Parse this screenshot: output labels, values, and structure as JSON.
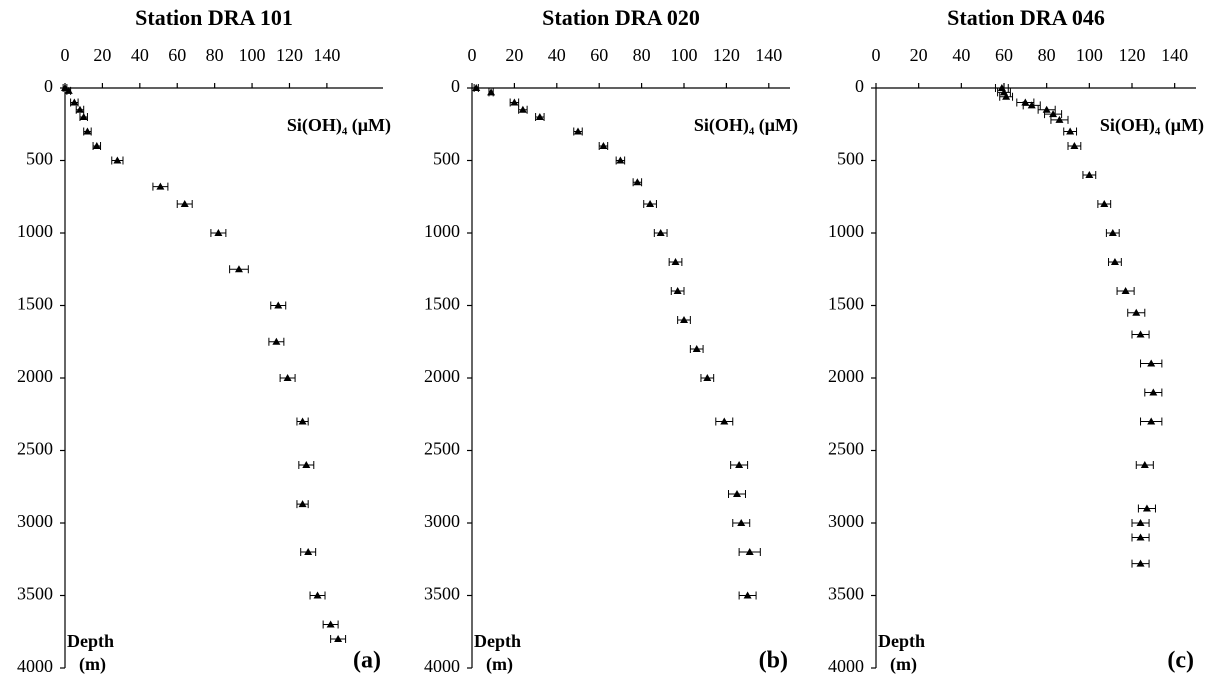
{
  "chart_data": [
    {
      "type": "scatter",
      "title": "Station DRA 101",
      "xlabel": "Si(OH)₄ (μM)",
      "ylabel": "Depth",
      "ylabel_unit": "(m)",
      "panel_label": "(a)",
      "x_axis_position": "top",
      "y_inverted": true,
      "color": "#000000",
      "xlim": [
        0,
        170
      ],
      "xticks": [
        0,
        20,
        40,
        60,
        80,
        100,
        120,
        140
      ],
      "ylim": [
        0,
        4000
      ],
      "yticks": [
        0,
        500,
        1000,
        1500,
        2000,
        2500,
        3000,
        3500,
        4000
      ],
      "x": [
        0,
        2,
        5,
        8,
        10,
        12,
        17,
        28,
        51,
        64,
        82,
        93,
        114,
        113,
        119,
        127,
        129,
        127,
        130,
        135,
        142,
        146
      ],
      "y": [
        0,
        20,
        100,
        150,
        200,
        300,
        400,
        500,
        680,
        800,
        1000,
        1250,
        1500,
        1750,
        2000,
        2300,
        2600,
        2870,
        3200,
        3500,
        3700,
        3800
      ],
      "xerr": [
        1,
        1,
        2,
        2,
        2,
        2,
        2,
        3,
        4,
        4,
        4,
        5,
        4,
        4,
        4,
        3,
        4,
        3,
        4,
        4,
        4,
        4
      ]
    },
    {
      "type": "scatter",
      "title": "Station DRA 020",
      "xlabel": "Si(OH)₄ (μM)",
      "ylabel": "Depth",
      "ylabel_unit": "(m)",
      "panel_label": "(b)",
      "x_axis_position": "top",
      "y_inverted": true,
      "color": "#000000",
      "xlim": [
        0,
        150
      ],
      "xticks": [
        0,
        20,
        40,
        60,
        80,
        100,
        120,
        140
      ],
      "ylim": [
        0,
        4000
      ],
      "yticks": [
        0,
        500,
        1000,
        1500,
        2000,
        2500,
        3000,
        3500,
        4000
      ],
      "x": [
        2,
        9,
        20,
        24,
        32,
        50,
        62,
        70,
        78,
        84,
        89,
        96,
        97,
        100,
        106,
        111,
        119,
        126,
        125,
        127,
        131,
        130
      ],
      "y": [
        0,
        30,
        100,
        150,
        200,
        300,
        400,
        500,
        650,
        800,
        1000,
        1200,
        1400,
        1600,
        1800,
        2000,
        2300,
        2600,
        2800,
        3000,
        3200,
        3500
      ],
      "xerr": [
        1,
        1,
        2,
        2,
        2,
        2,
        2,
        2,
        2,
        3,
        3,
        3,
        3,
        3,
        3,
        3,
        4,
        4,
        4,
        4,
        5,
        4
      ]
    },
    {
      "type": "scatter",
      "title": "Station DRA 046",
      "xlabel": "Si(OH)₄ (μM)",
      "ylabel": "Depth",
      "ylabel_unit": "(m)",
      "panel_label": "(c)",
      "x_axis_position": "top",
      "y_inverted": true,
      "color": "#000000",
      "xlim": [
        0,
        150
      ],
      "xticks": [
        0,
        20,
        40,
        60,
        80,
        100,
        120,
        140
      ],
      "ylim": [
        0,
        4000
      ],
      "yticks": [
        0,
        500,
        1000,
        1500,
        2000,
        2500,
        3000,
        3500,
        4000
      ],
      "x": [
        59,
        60,
        61,
        70,
        73,
        80,
        83,
        86,
        91,
        93,
        100,
        107,
        111,
        112,
        117,
        122,
        124,
        129,
        130,
        129,
        126,
        127,
        124,
        124,
        124
      ],
      "y": [
        0,
        30,
        60,
        100,
        120,
        150,
        180,
        220,
        300,
        400,
        600,
        800,
        1000,
        1200,
        1400,
        1550,
        1700,
        1900,
        2100,
        2300,
        2600,
        2900,
        3000,
        3100,
        3280
      ],
      "xerr": [
        3,
        3,
        3,
        4,
        4,
        4,
        4,
        4,
        3,
        3,
        3,
        3,
        3,
        3,
        4,
        4,
        4,
        5,
        4,
        5,
        4,
        4,
        4,
        4,
        4
      ]
    }
  ]
}
